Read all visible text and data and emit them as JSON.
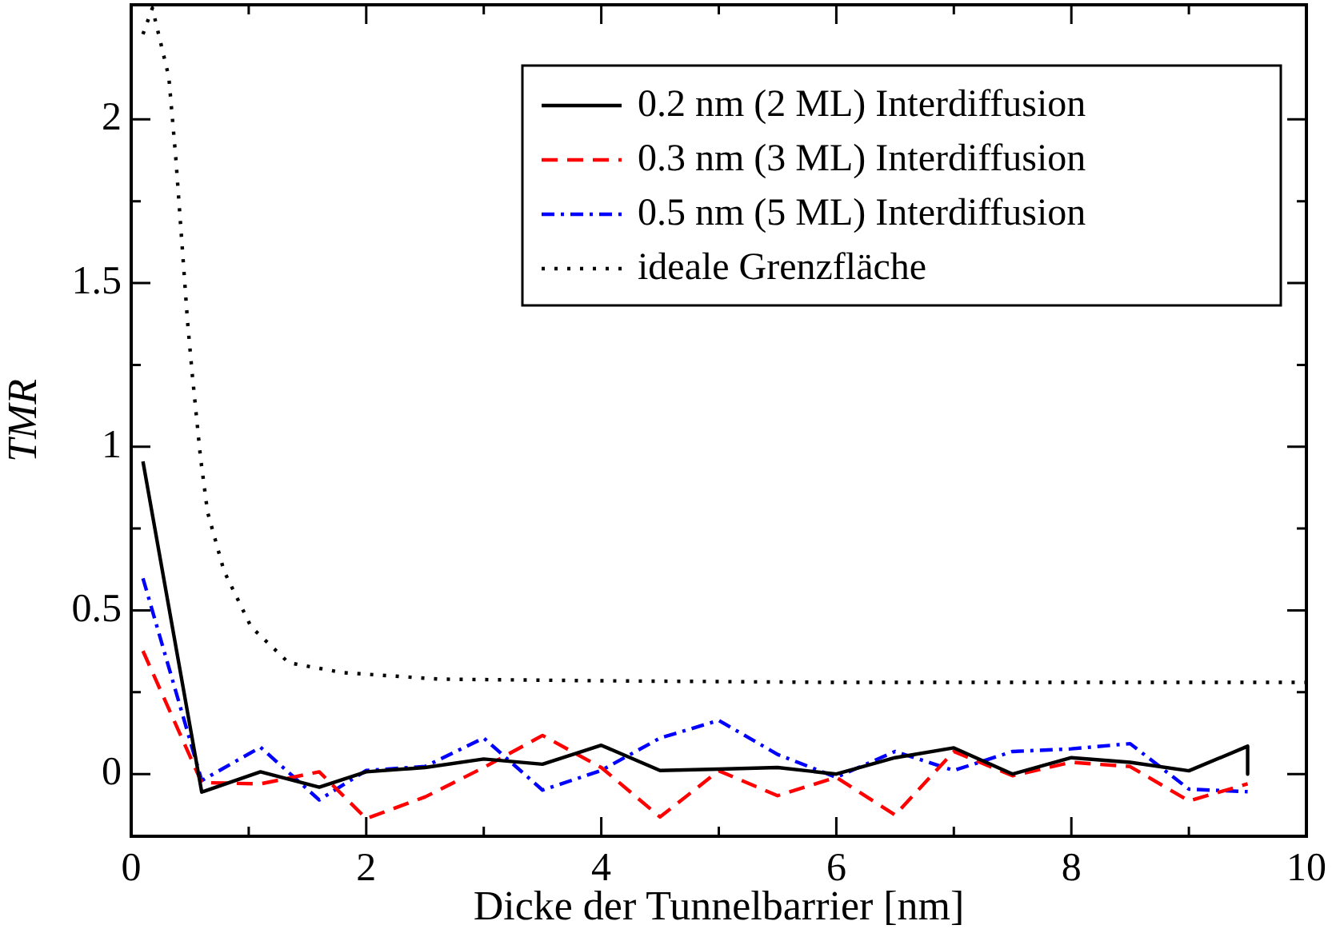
{
  "chart_data": {
    "type": "line",
    "xlabel": "Dicke der Tunnelbarrier [nm]",
    "ylabel": "TMR",
    "xlim": [
      0,
      10
    ],
    "xticks": [
      0,
      {
        "value": 1,
        "label": null
      },
      2,
      {
        "value": 3,
        "label": null
      },
      4,
      {
        "value": 5,
        "label": null
      },
      6,
      {
        "value": 7,
        "label": null
      },
      8,
      {
        "value": 9,
        "label": null
      },
      10
    ],
    "ylim": [
      -0.19,
      2.35
    ],
    "yticks": [
      0,
      {
        "value": 0.25,
        "label": null
      },
      0.5,
      {
        "value": 0.75,
        "label": null
      },
      1,
      {
        "value": 1.25,
        "label": null
      },
      1.5,
      {
        "value": 1.75,
        "label": null
      },
      2
    ],
    "grid": false,
    "legend": "top right",
    "marker": "none",
    "series": [
      {
        "name": "0.2 nm (2 ML) Interdiffusion",
        "color": "#000000",
        "line_style": "solid",
        "x": [
          0.1,
          0.6,
          1.1,
          1.6,
          2.0,
          2.5,
          3.0,
          3.5,
          4.0,
          4.5,
          5.0,
          5.5,
          6.0,
          6.5,
          7.0,
          7.5,
          8.0,
          8.5,
          9.0,
          9.5,
          9.5
        ],
        "values": [
          0.955,
          -0.055,
          0.007,
          -0.04,
          0.007,
          0.02,
          0.046,
          0.03,
          0.088,
          0.011,
          0.015,
          0.02,
          0,
          0.05,
          0.08,
          0,
          0.05,
          0.036,
          0.01,
          0.085,
          0
        ]
      },
      {
        "name": "0.3 nm (3 ML) Interdiffusion",
        "color": "#ff0000",
        "line_style": "dashed",
        "x": [
          0.1,
          0.6,
          1.1,
          1.6,
          2.0,
          2.5,
          3.0,
          3.5,
          4.0,
          4.5,
          5.0,
          5.5,
          6.0,
          6.5,
          7.0,
          7.5,
          8.0,
          8.5,
          9.0,
          9.5
        ],
        "values": [
          0.376,
          -0.026,
          -0.03,
          0.007,
          -0.136,
          -0.07,
          0.02,
          0.118,
          0.02,
          -0.131,
          0.01,
          -0.066,
          -0.01,
          -0.125,
          0.069,
          -0.005,
          0.036,
          0.023,
          -0.082,
          -0.03
        ]
      },
      {
        "name": "0.5 nm (5 ML) Interdiffusion",
        "color": "#0000ff",
        "line_style": "dashdot",
        "x": [
          0.1,
          0.6,
          1.1,
          1.6,
          2.0,
          2.5,
          3.0,
          3.5,
          4.0,
          4.5,
          5.0,
          5.5,
          6.0,
          6.5,
          7.0,
          7.5,
          8.0,
          8.5,
          9.0,
          9.5
        ],
        "values": [
          0.598,
          -0.02,
          0.082,
          -0.079,
          0.011,
          0.023,
          0.11,
          -0.049,
          0.011,
          0.11,
          0.164,
          0.06,
          -0.01,
          0.069,
          0.011,
          0.069,
          0.077,
          0.093,
          -0.046,
          -0.054
        ]
      },
      {
        "name": "ideale Grenzfläche",
        "color": "#000000",
        "line_style": "dotted",
        "x": [
          0.1,
          0.18,
          0.32,
          0.38,
          0.43,
          0.48,
          0.52,
          0.59,
          0.65,
          0.79,
          1.02,
          1.34,
          1.8,
          2.62,
          4.0,
          6.0,
          8.0,
          10.0
        ],
        "values": [
          2.26,
          2.34,
          2.13,
          1.88,
          1.63,
          1.38,
          1.22,
          0.966,
          0.8,
          0.62,
          0.45,
          0.34,
          0.31,
          0.29,
          0.285,
          0.28,
          0.28,
          0.28
        ]
      }
    ]
  }
}
